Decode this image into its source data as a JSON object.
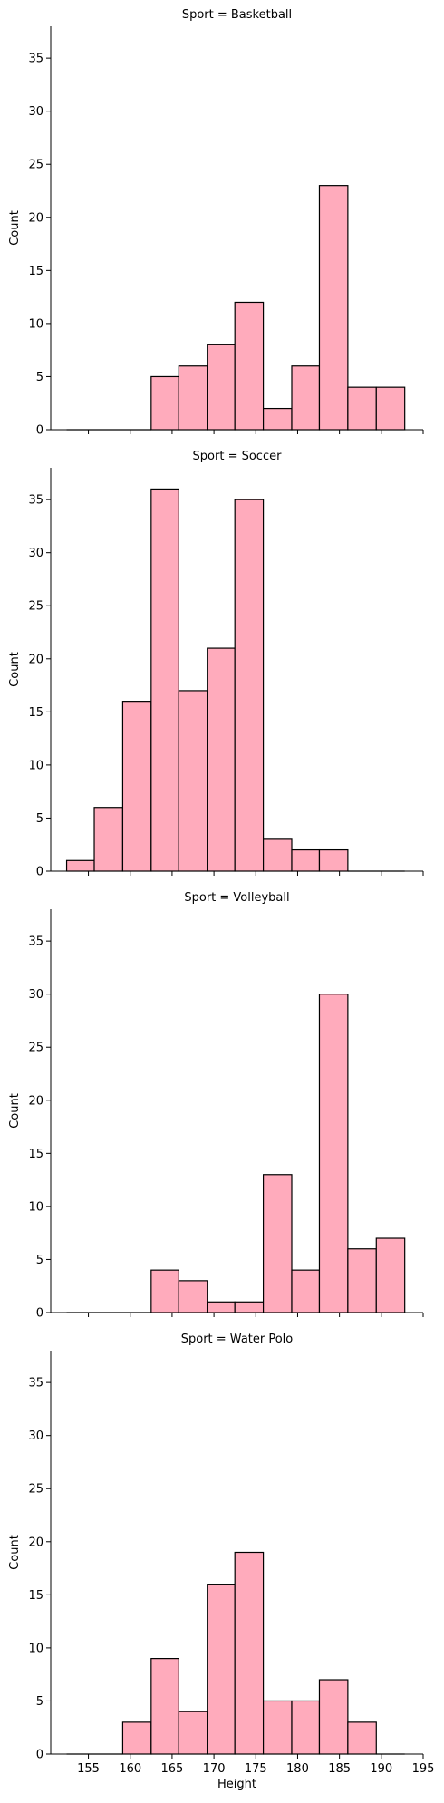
{
  "chart_data": {
    "type": "bar",
    "xlabel": "Height",
    "ylabel": "Count",
    "xlim": [
      150.5,
      195
    ],
    "ylim": [
      0,
      38
    ],
    "xticks": [
      155,
      160,
      165,
      170,
      175,
      180,
      185,
      190,
      195
    ],
    "yticks": [
      0,
      5,
      10,
      15,
      20,
      25,
      30,
      35
    ],
    "bin_edges": [
      152.4,
      155.7,
      159.1,
      162.5,
      165.8,
      169.2,
      172.5,
      175.9,
      179.3,
      182.6,
      186.0,
      189.4,
      192.8
    ],
    "series": [
      {
        "name": "Basketball",
        "title": "Sport = Basketball",
        "values": [
          0,
          0,
          0,
          5,
          6,
          8,
          12,
          2,
          6,
          23,
          4,
          4
        ]
      },
      {
        "name": "Soccer",
        "title": "Sport = Soccer",
        "values": [
          1,
          6,
          16,
          36,
          17,
          21,
          35,
          3,
          2,
          2,
          0,
          0
        ]
      },
      {
        "name": "Volleyball",
        "title": "Sport = Volleyball",
        "values": [
          0,
          0,
          0,
          4,
          3,
          1,
          1,
          13,
          4,
          30,
          6,
          7
        ]
      },
      {
        "name": "Water Polo",
        "title": "Sport = Water Polo",
        "values": [
          0,
          0,
          3,
          9,
          4,
          16,
          19,
          5,
          5,
          7,
          3,
          0
        ]
      }
    ]
  }
}
